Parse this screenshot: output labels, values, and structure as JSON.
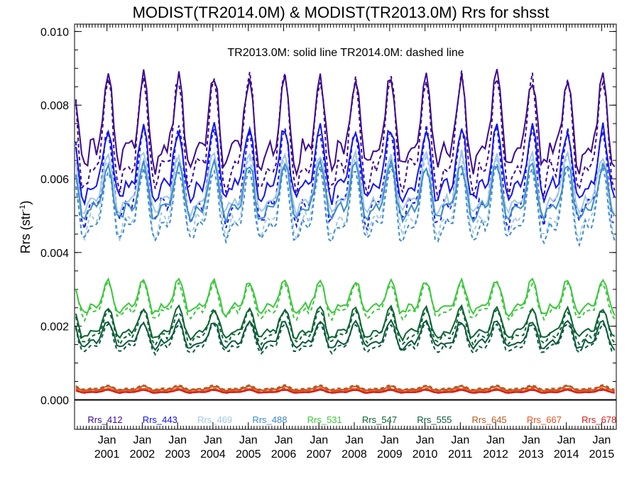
{
  "chart_data": {
    "type": "line",
    "title": "MODIST(TR2014.0M) & MODIST(TR2013.0M)  Rrs for shsst",
    "subtitle": "TR2013.0M: solid line   TR2014.0M: dashed line",
    "xlabel": "",
    "ylabel": "Rrs (str",
    "ylabel_sup": "-1",
    "ylabel_close": ")",
    "xlim": [
      "2000-02-01",
      "2015-06-01"
    ],
    "ylim": [
      -0.0008,
      0.0102
    ],
    "yticks": [
      "0.000",
      "0.002",
      "0.004",
      "0.006",
      "0.008",
      "0.010"
    ],
    "ytick_values": [
      0.0,
      0.002,
      0.004,
      0.006,
      0.008,
      0.01
    ],
    "xticks_top": [
      "Jan",
      "Jan",
      "Jan",
      "Jan",
      "Jan",
      "Jan",
      "Jan",
      "Jan",
      "Jan",
      "Jan",
      "Jan",
      "Jan",
      "Jan",
      "Jan",
      "Jan"
    ],
    "xticks_bottom": [
      "2001",
      "2002",
      "2003",
      "2004",
      "2005",
      "2006",
      "2007",
      "2008",
      "2009",
      "2010",
      "2011",
      "2012",
      "2013",
      "2014",
      "2015"
    ],
    "zero_line": 0.0,
    "note_solid": "TR2013.0M",
    "note_dashed": "TR2014.0M",
    "series": [
      {
        "name": "Rrs_412",
        "color": "#3c0a8c",
        "mean": 0.0073,
        "amp": 0.0015,
        "tr2014_offset": -0.0004,
        "tr2014_amp": 1.25
      },
      {
        "name": "Rrs_443",
        "color": "#1414f0",
        "mean": 0.0062,
        "amp": 0.0012,
        "tr2014_offset": -0.0004,
        "tr2014_amp": 1.3
      },
      {
        "name": "Rrs_469",
        "color": "#a0c8e6",
        "mean": 0.0057,
        "amp": 0.001,
        "tr2014_offset": -0.0004,
        "tr2014_amp": 1.3
      },
      {
        "name": "Rrs_488",
        "color": "#3c8cc8",
        "mean": 0.0055,
        "amp": 0.0009,
        "tr2014_offset": -0.0004,
        "tr2014_amp": 1.35
      },
      {
        "name": "Rrs_531",
        "color": "#3cc83c",
        "mean": 0.0027,
        "amp": 0.00055,
        "tr2014_offset": -0.0001,
        "tr2014_amp": 1.05
      },
      {
        "name": "Rrs_547",
        "color": "#0a6432",
        "mean": 0.002,
        "amp": 0.0005,
        "tr2014_offset": -0.0001,
        "tr2014_amp": 1.1
      },
      {
        "name": "Rrs_555",
        "color": "#0a5a3c",
        "mean": 0.0017,
        "amp": 0.00045,
        "tr2014_offset": -0.0001,
        "tr2014_amp": 1.1
      },
      {
        "name": "Rrs_645",
        "color": "#b45a1e",
        "mean": 0.0003,
        "amp": 7e-05,
        "tr2014_offset": 3e-05,
        "tr2014_amp": 1.0
      },
      {
        "name": "Rrs_667",
        "color": "#e6501e",
        "mean": 0.00025,
        "amp": 5e-05,
        "tr2014_offset": 2e-05,
        "tr2014_amp": 1.0
      },
      {
        "name": "Rrs_678",
        "color": "#d21e1e",
        "mean": 0.00022,
        "amp": 5e-05,
        "tr2014_offset": 0.0,
        "tr2014_amp": 1.0
      }
    ],
    "legend_position": "bottom inside plot",
    "grid": false
  }
}
